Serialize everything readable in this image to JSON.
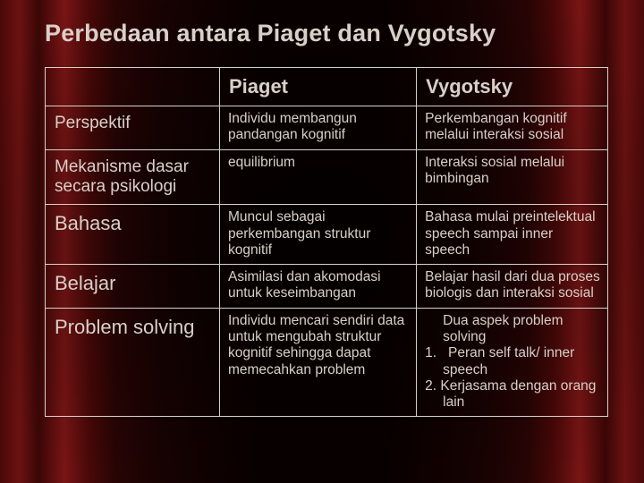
{
  "slide": {
    "title": "Perbedaan antara Piaget dan Vygotsky",
    "background": {
      "curtain_colors": [
        "#4a0808",
        "#6b1212",
        "#3a0606",
        "#7a1515",
        "#2a0404",
        "#1a0202",
        "#0a0000"
      ],
      "text_color": "#d8d0c8",
      "border_color": "#d8d0c8"
    },
    "table": {
      "col_widths_pct": [
        31,
        35,
        34
      ],
      "header": {
        "col1": "",
        "col2": "Piaget",
        "col3": "Vygotsky"
      },
      "rows": [
        {
          "label": "Perspektif",
          "label_size": "normal",
          "piaget": "Individu membangun pandangan kognitif",
          "vygotsky": "Perkembangan kognitif melalui interaksi sosial"
        },
        {
          "label": "Mekanisme dasar secara psikologi",
          "label_size": "normal",
          "piaget": "equilibrium",
          "vygotsky": "Interaksi sosial melalui bimbingan"
        },
        {
          "label": "Bahasa",
          "label_size": "big",
          "piaget": "Muncul sebagai perkembangan struktur kognitif",
          "vygotsky": "Bahasa mulai preintelektual speech sampai inner speech"
        },
        {
          "label": "Belajar",
          "label_size": "big",
          "piaget": "Asimilasi dan akomodasi untuk keseimbangan",
          "vygotsky": "Belajar hasil dari dua proses biologis dan interaksi sosial"
        },
        {
          "label": "Problem solving",
          "label_size": "big",
          "piaget": "Individu mencari sendiri data untuk mengubah struktur kognitif sehingga dapat memecahkan problem",
          "vygotsky_list": {
            "lead": "Dua aspek problem solving",
            "items": [
              "Peran self talk/ inner speech",
              "Kerjasama dengan orang lain"
            ]
          }
        }
      ]
    },
    "typography": {
      "title_fontsize": 27,
      "header_fontsize": 22,
      "rowlabel_fontsize": 19,
      "rowlabel_big_fontsize": 22,
      "cell_fontsize": 15.5,
      "font_family": "Tahoma"
    }
  }
}
